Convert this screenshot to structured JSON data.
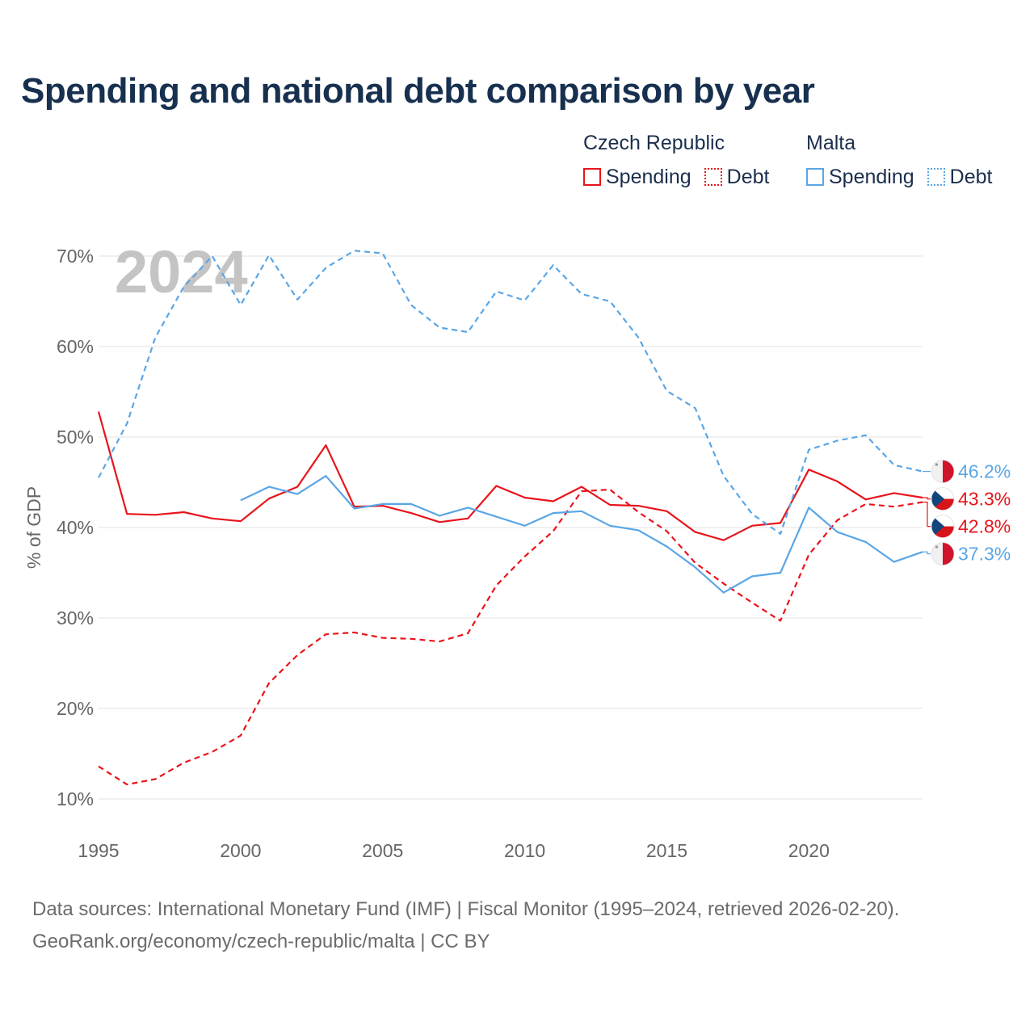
{
  "title": "Spending and national debt comparison by year",
  "legend": {
    "groups": [
      {
        "name": "Czech Republic",
        "color": "#e8141c",
        "items": [
          {
            "label": "Spending",
            "style": "solid"
          },
          {
            "label": "Debt",
            "style": "dotted"
          }
        ]
      },
      {
        "name": "Malta",
        "color": "#5aa6e5",
        "items": [
          {
            "label": "Spending",
            "style": "solid"
          },
          {
            "label": "Debt",
            "style": "dotted"
          }
        ]
      }
    ]
  },
  "year_watermark": "2024",
  "sources": {
    "line1": "Data sources: International Monetary Fund (IMF) | Fiscal Monitor (1995–2024, retrieved 2026-02-20).",
    "line2": "GeoRank.org/economy/czech-republic/malta | CC BY"
  },
  "colors": {
    "czech": "#e8141c",
    "malta": "#5aa6e5",
    "grid": "#e6e6e6",
    "axis_text": "#666666"
  },
  "flags": {
    "czech": "czech-flag-icon",
    "malta": "malta-flag-icon"
  },
  "chart_data": {
    "type": "line",
    "title": "Spending and national debt comparison by year",
    "xlabel": "",
    "ylabel": "% of GDP",
    "xlim": [
      1995,
      2024
    ],
    "ylim": [
      10,
      70
    ],
    "x_ticks": [
      1995,
      2000,
      2005,
      2010,
      2015,
      2020
    ],
    "x_tick_labels": [
      "1995",
      "2000",
      "2005",
      "2010",
      "2015",
      "2020"
    ],
    "y_ticks": [
      10,
      20,
      30,
      40,
      50,
      60,
      70
    ],
    "y_tick_labels": [
      "10%",
      "20%",
      "30%",
      "40%",
      "50%",
      "60%",
      "70%"
    ],
    "series": [
      {
        "name": "Czech Republic Spending",
        "country": "czech",
        "style": "solid",
        "end_label": "43.3%",
        "x": [
          1995,
          1996,
          1997,
          1998,
          1999,
          2000,
          2001,
          2002,
          2003,
          2004,
          2005,
          2006,
          2007,
          2008,
          2009,
          2010,
          2011,
          2012,
          2013,
          2014,
          2015,
          2016,
          2017,
          2018,
          2019,
          2020,
          2021,
          2022,
          2023,
          2024
        ],
        "values": [
          52.8,
          41.5,
          41.4,
          41.7,
          41.0,
          40.7,
          43.2,
          44.5,
          49.1,
          42.3,
          42.4,
          41.6,
          40.6,
          41.0,
          44.6,
          43.3,
          42.9,
          44.5,
          42.5,
          42.4,
          41.8,
          39.5,
          38.6,
          40.2,
          40.5,
          46.4,
          45.1,
          43.1,
          43.8,
          43.3
        ]
      },
      {
        "name": "Czech Republic Debt",
        "country": "czech",
        "style": "dashed",
        "end_label": "42.8%",
        "x": [
          1995,
          1996,
          1997,
          1998,
          1999,
          2000,
          2001,
          2002,
          2003,
          2004,
          2005,
          2006,
          2007,
          2008,
          2009,
          2010,
          2011,
          2012,
          2013,
          2014,
          2015,
          2016,
          2017,
          2018,
          2019,
          2020,
          2021,
          2022,
          2023,
          2024
        ],
        "values": [
          13.6,
          11.6,
          12.2,
          14.0,
          15.2,
          17.0,
          22.8,
          25.9,
          28.2,
          28.4,
          27.8,
          27.7,
          27.4,
          28.3,
          33.6,
          36.8,
          39.6,
          44.0,
          44.2,
          41.7,
          39.6,
          36.1,
          33.8,
          31.7,
          29.7,
          37.0,
          40.8,
          42.6,
          42.3,
          42.8
        ]
      },
      {
        "name": "Malta Spending",
        "country": "malta",
        "style": "solid",
        "end_label": "37.3%",
        "x": [
          2000,
          2001,
          2002,
          2003,
          2004,
          2005,
          2006,
          2007,
          2008,
          2009,
          2010,
          2011,
          2012,
          2013,
          2014,
          2015,
          2016,
          2017,
          2018,
          2019,
          2020,
          2021,
          2022,
          2023,
          2024
        ],
        "values": [
          43.0,
          44.5,
          43.7,
          45.7,
          42.1,
          42.6,
          42.6,
          41.3,
          42.2,
          41.2,
          40.2,
          41.6,
          41.8,
          40.2,
          39.7,
          37.9,
          35.6,
          32.8,
          34.6,
          35.0,
          42.2,
          39.5,
          38.4,
          36.2,
          37.3
        ]
      },
      {
        "name": "Malta Debt",
        "country": "malta",
        "style": "dashed",
        "end_label": "46.2%",
        "x": [
          1995,
          1996,
          1997,
          1998,
          1999,
          2000,
          2001,
          2002,
          2003,
          2004,
          2005,
          2006,
          2007,
          2008,
          2009,
          2010,
          2011,
          2012,
          2013,
          2014,
          2015,
          2016,
          2017,
          2018,
          2019,
          2020,
          2021,
          2022,
          2023,
          2024
        ],
        "values": [
          45.5,
          51.5,
          61.0,
          66.6,
          70.0,
          64.6,
          70.1,
          65.2,
          68.7,
          70.6,
          70.3,
          64.6,
          62.1,
          61.6,
          66.1,
          65.1,
          69.0,
          65.8,
          65.0,
          61.0,
          55.1,
          53.2,
          45.7,
          41.5,
          39.3,
          48.6,
          49.6,
          50.2,
          46.9,
          46.2
        ]
      }
    ]
  }
}
